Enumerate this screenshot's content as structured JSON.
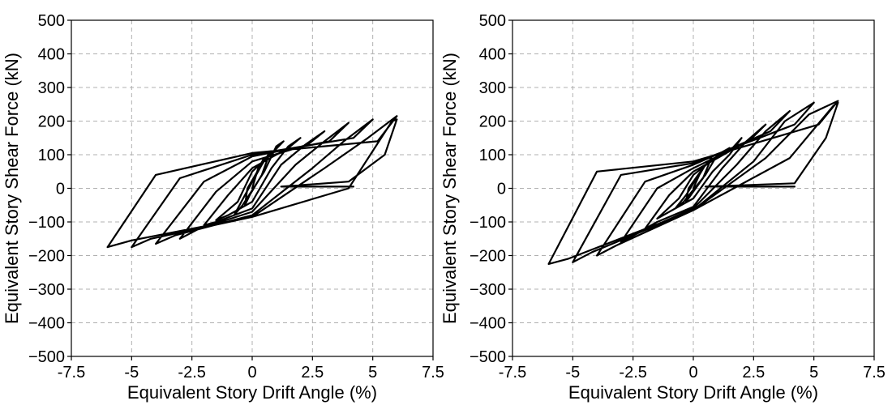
{
  "chart_data": [
    {
      "type": "line",
      "xlabel": "Equivalent Story Drift Angle (%)",
      "ylabel": "Equivalent Story Shear Force (kN)",
      "xlim": [
        -7.5,
        7.5
      ],
      "ylim": [
        -500,
        500
      ],
      "xticks": [
        -7.5,
        -5,
        -2.5,
        0,
        2.5,
        5,
        7.5
      ],
      "xtick_labels": [
        "-7.5",
        "-5",
        "-2.5",
        "0",
        "2.5",
        "5",
        "7.5"
      ],
      "yticks": [
        500,
        400,
        300,
        200,
        100,
        0,
        -100,
        -200,
        -300,
        -400,
        -500
      ],
      "ytick_labels": [
        "500",
        "400",
        "300",
        "200",
        "100",
        "0",
        "−100",
        "−200",
        "−300",
        "−400",
        "−500"
      ],
      "grid": true,
      "line_color": "#000000",
      "grid_color": "#b0b0b0",
      "series": [
        {
          "values": [
            {
              "x": 0.0,
              "y": 0
            },
            {
              "x": 0.25,
              "y": 60
            },
            {
              "x": 0.5,
              "y": 90
            },
            {
              "x": 0.3,
              "y": 60
            },
            {
              "x": -0.2,
              "y": 0
            },
            {
              "x": -0.3,
              "y": -50
            },
            {
              "x": -0.1,
              "y": -20
            },
            {
              "x": 0.4,
              "y": 40
            },
            {
              "x": 0.75,
              "y": 110
            },
            {
              "x": 0.4,
              "y": 70
            },
            {
              "x": -0.3,
              "y": -20
            },
            {
              "x": -0.75,
              "y": -80
            },
            {
              "x": -0.4,
              "y": -50
            },
            {
              "x": 0.5,
              "y": 50
            },
            {
              "x": 1.0,
              "y": 125
            },
            {
              "x": 1.3,
              "y": 140
            },
            {
              "x": 0.9,
              "y": 110
            },
            {
              "x": 0.0,
              "y": 50
            },
            {
              "x": -0.6,
              "y": -40
            },
            {
              "x": -1.5,
              "y": -95
            },
            {
              "x": -1.0,
              "y": -80
            },
            {
              "x": 0.0,
              "y": -40
            },
            {
              "x": 0.8,
              "y": 60
            },
            {
              "x": 1.5,
              "y": 125
            },
            {
              "x": 2.0,
              "y": 150
            },
            {
              "x": 1.5,
              "y": 120
            },
            {
              "x": 0.0,
              "y": 60
            },
            {
              "x": -1.0,
              "y": -20
            },
            {
              "x": -2.0,
              "y": -110
            },
            {
              "x": -1.5,
              "y": -100
            },
            {
              "x": 0.0,
              "y": -60
            },
            {
              "x": 1.2,
              "y": 70
            },
            {
              "x": 2.2,
              "y": 130
            },
            {
              "x": 3.0,
              "y": 170
            },
            {
              "x": 2.3,
              "y": 130
            },
            {
              "x": 0.0,
              "y": 80
            },
            {
              "x": -1.5,
              "y": -10
            },
            {
              "x": -3.0,
              "y": -150
            },
            {
              "x": -2.2,
              "y": -120
            },
            {
              "x": 0.0,
              "y": -70
            },
            {
              "x": 1.8,
              "y": 70
            },
            {
              "x": 3.0,
              "y": 140
            },
            {
              "x": 4.0,
              "y": 195
            },
            {
              "x": 3.2,
              "y": 140
            },
            {
              "x": 0.0,
              "y": 95
            },
            {
              "x": -2.0,
              "y": 20
            },
            {
              "x": -4.0,
              "y": -165
            },
            {
              "x": -3.2,
              "y": -140
            },
            {
              "x": 0.0,
              "y": -80
            },
            {
              "x": 2.5,
              "y": 60
            },
            {
              "x": 3.8,
              "y": 140
            },
            {
              "x": 5.0,
              "y": 205
            },
            {
              "x": 4.2,
              "y": 150
            },
            {
              "x": 0.0,
              "y": 100
            },
            {
              "x": -3.0,
              "y": 30
            },
            {
              "x": -5.0,
              "y": -175
            },
            {
              "x": -4.2,
              "y": -150
            },
            {
              "x": 0.0,
              "y": -85
            },
            {
              "x": 3.0,
              "y": 60
            },
            {
              "x": 4.8,
              "y": 150
            },
            {
              "x": 6.0,
              "y": 215
            },
            {
              "x": 5.2,
              "y": 140
            },
            {
              "x": 0.0,
              "y": 105
            },
            {
              "x": -4.0,
              "y": 40
            },
            {
              "x": -6.0,
              "y": -175
            },
            {
              "x": -5.0,
              "y": -155
            },
            {
              "x": 0.0,
              "y": -85
            },
            {
              "x": 4.0,
              "y": 0
            },
            {
              "x": 5.8,
              "y": 200
            },
            {
              "x": 6.0,
              "y": 205
            },
            {
              "x": 5.5,
              "y": 100
            },
            {
              "x": 4.0,
              "y": 20
            },
            {
              "x": 1.2,
              "y": 5
            },
            {
              "x": 4.2,
              "y": 5
            }
          ]
        }
      ]
    },
    {
      "type": "line",
      "xlabel": "Equivalent Story Drift Angle (%)",
      "ylabel": "Equivalent Story Shear Force (kN)",
      "xlim": [
        -7.5,
        7.5
      ],
      "ylim": [
        -500,
        500
      ],
      "xticks": [
        -7.5,
        -5,
        -2.5,
        0,
        2.5,
        5,
        7.5
      ],
      "xtick_labels": [
        "-7.5",
        "-5",
        "-2.5",
        "0",
        "2.5",
        "5",
        "7.5"
      ],
      "yticks": [
        500,
        400,
        300,
        200,
        100,
        0,
        -100,
        -200,
        -300,
        -400,
        -500
      ],
      "ytick_labels": [
        "500",
        "400",
        "300",
        "200",
        "100",
        "0",
        "−100",
        "−200",
        "−300",
        "−400",
        "−500"
      ],
      "grid": true,
      "line_color": "#000000",
      "grid_color": "#b0b0b0",
      "series": [
        {
          "values": [
            {
              "x": 0.0,
              "y": 0
            },
            {
              "x": 0.25,
              "y": 40
            },
            {
              "x": 0.5,
              "y": 70
            },
            {
              "x": 0.3,
              "y": 50
            },
            {
              "x": -0.2,
              "y": 0
            },
            {
              "x": -0.3,
              "y": -40
            },
            {
              "x": -0.1,
              "y": -20
            },
            {
              "x": 0.4,
              "y": 30
            },
            {
              "x": 0.75,
              "y": 90
            },
            {
              "x": 0.4,
              "y": 60
            },
            {
              "x": -0.3,
              "y": -20
            },
            {
              "x": -0.75,
              "y": -60
            },
            {
              "x": -0.4,
              "y": -40
            },
            {
              "x": 0.5,
              "y": 40
            },
            {
              "x": 1.0,
              "y": 100
            },
            {
              "x": 1.5,
              "y": 120
            },
            {
              "x": 0.9,
              "y": 90
            },
            {
              "x": 0.0,
              "y": 40
            },
            {
              "x": -0.6,
              "y": -30
            },
            {
              "x": -1.5,
              "y": -90
            },
            {
              "x": -1.0,
              "y": -70
            },
            {
              "x": 0.0,
              "y": -30
            },
            {
              "x": 0.8,
              "y": 50
            },
            {
              "x": 1.5,
              "y": 100
            },
            {
              "x": 2.0,
              "y": 150
            },
            {
              "x": 1.5,
              "y": 110
            },
            {
              "x": 0.0,
              "y": 50
            },
            {
              "x": -1.0,
              "y": -20
            },
            {
              "x": -2.0,
              "y": -120
            },
            {
              "x": -1.5,
              "y": -100
            },
            {
              "x": 0.0,
              "y": -55
            },
            {
              "x": 1.2,
              "y": 60
            },
            {
              "x": 2.2,
              "y": 140
            },
            {
              "x": 3.0,
              "y": 190
            },
            {
              "x": 2.3,
              "y": 140
            },
            {
              "x": 0.0,
              "y": 60
            },
            {
              "x": -1.5,
              "y": 0
            },
            {
              "x": -3.0,
              "y": -160
            },
            {
              "x": -2.2,
              "y": -130
            },
            {
              "x": 0.0,
              "y": -60
            },
            {
              "x": 1.8,
              "y": 70
            },
            {
              "x": 3.0,
              "y": 170
            },
            {
              "x": 4.0,
              "y": 230
            },
            {
              "x": 3.2,
              "y": 170
            },
            {
              "x": 0.0,
              "y": 70
            },
            {
              "x": -2.0,
              "y": 20
            },
            {
              "x": -4.0,
              "y": -200
            },
            {
              "x": -3.2,
              "y": -170
            },
            {
              "x": 0.0,
              "y": -65
            },
            {
              "x": 2.5,
              "y": 80
            },
            {
              "x": 3.8,
              "y": 200
            },
            {
              "x": 5.0,
              "y": 255
            },
            {
              "x": 4.2,
              "y": 190
            },
            {
              "x": 0.0,
              "y": 75
            },
            {
              "x": -3.0,
              "y": 40
            },
            {
              "x": -5.0,
              "y": -220
            },
            {
              "x": -4.2,
              "y": -190
            },
            {
              "x": 0.0,
              "y": -65
            },
            {
              "x": 3.0,
              "y": 90
            },
            {
              "x": 4.8,
              "y": 220
            },
            {
              "x": 6.0,
              "y": 260
            },
            {
              "x": 5.2,
              "y": 190
            },
            {
              "x": 0.0,
              "y": 80
            },
            {
              "x": -4.0,
              "y": 50
            },
            {
              "x": -6.0,
              "y": -225
            },
            {
              "x": -5.2,
              "y": -210
            },
            {
              "x": 0.0,
              "y": -65
            },
            {
              "x": 4.0,
              "y": 90
            },
            {
              "x": 5.8,
              "y": 245
            },
            {
              "x": 6.0,
              "y": 255
            },
            {
              "x": 5.5,
              "y": 150
            },
            {
              "x": 4.2,
              "y": 15
            },
            {
              "x": 0.5,
              "y": 5
            },
            {
              "x": 4.2,
              "y": 5
            }
          ]
        }
      ]
    }
  ]
}
